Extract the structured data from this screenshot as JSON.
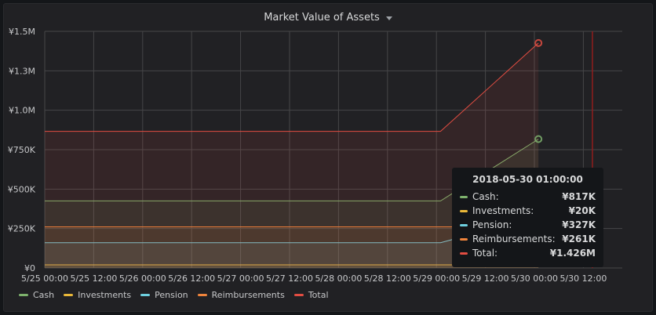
{
  "panel": {
    "title": "Market Value of Assets"
  },
  "chart_data": {
    "type": "area",
    "title": "Market Value of Assets",
    "x_ticks": [
      "5/25 00:00",
      "5/25 12:00",
      "5/26 00:00",
      "5/26 12:00",
      "5/27 00:00",
      "5/27 12:00",
      "5/28 00:00",
      "5/28 12:00",
      "5/29 00:00",
      "5/29 12:00",
      "5/30 00:00",
      "5/30 12:00"
    ],
    "y_ticks": [
      "¥0",
      "¥250K",
      "¥500K",
      "¥750K",
      "¥1.0M",
      "¥1.3M",
      "¥1.5M"
    ],
    "ylim": [
      0,
      1500000
    ],
    "x": [
      "5/25 00:00",
      "5/29 01:00",
      "5/30 01:00"
    ],
    "series": [
      {
        "name": "Cash",
        "color": "#7eb26d",
        "values": [
          425000,
          425000,
          817000
        ]
      },
      {
        "name": "Investments",
        "color": "#eab839",
        "values": [
          20000,
          20000,
          20000
        ]
      },
      {
        "name": "Pension",
        "color": "#6ed0e0",
        "values": [
          160000,
          160000,
          327000
        ]
      },
      {
        "name": "Reimbursements",
        "color": "#ef843c",
        "values": [
          261000,
          261000,
          261000
        ]
      },
      {
        "name": "Total",
        "color": "#e24d42",
        "values": [
          866000,
          866000,
          1426000
        ]
      }
    ],
    "grid": true,
    "legend": "bottom-left",
    "marker_color": "#8f1d1d"
  },
  "legend": [
    {
      "label": "Cash",
      "color": "#7eb26d"
    },
    {
      "label": "Investments",
      "color": "#eab839"
    },
    {
      "label": "Pension",
      "color": "#6ed0e0"
    },
    {
      "label": "Reimbursements",
      "color": "#ef843c"
    },
    {
      "label": "Total",
      "color": "#e24d42"
    }
  ],
  "tooltip": {
    "title": "2018-05-30 01:00:00",
    "rows": [
      {
        "name": "Cash:",
        "value": "¥817K",
        "color": "#7eb26d"
      },
      {
        "name": "Investments:",
        "value": "¥20K",
        "color": "#eab839"
      },
      {
        "name": "Pension:",
        "value": "¥327K",
        "color": "#6ed0e0"
      },
      {
        "name": "Reimbursements:",
        "value": "¥261K",
        "color": "#ef843c"
      },
      {
        "name": "Total:",
        "value": "¥1.426M",
        "color": "#e24d42"
      }
    ]
  }
}
